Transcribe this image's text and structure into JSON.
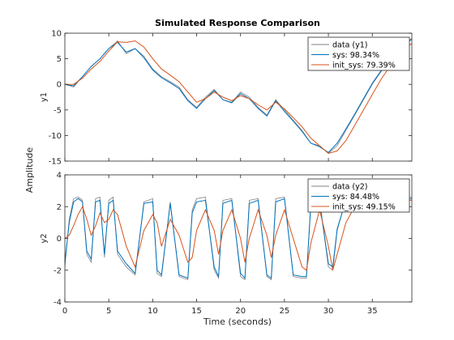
{
  "chart_data": {
    "type": "line",
    "title": "Simulated Response Comparison",
    "xlabel": "Time (seconds)",
    "ylabel": "Amplitude",
    "xlim": [
      0,
      39.5
    ],
    "xticks": [
      "0",
      "5",
      "10",
      "15",
      "20",
      "25",
      "30",
      "35"
    ],
    "colors": {
      "data": "#808080",
      "sys": "#0072bd",
      "init_sys": "#d95319"
    },
    "subplots": [
      {
        "ylabel": "y1",
        "ylim": [
          -15,
          10
        ],
        "yticks": [
          "10",
          "5",
          "0",
          "-5",
          "-10",
          "-15"
        ],
        "legend": [
          "data (y1)",
          "sys: 98.34%",
          "init_sys: 79.39%"
        ],
        "series": [
          {
            "name": "data (y1)",
            "x": [
              0,
              1,
              2,
              3,
              4,
              5,
              6,
              7,
              8,
              9,
              10,
              11,
              12,
              13,
              14,
              15,
              16,
              17,
              18,
              19,
              20,
              21,
              22,
              23,
              24,
              25,
              26,
              27,
              28,
              29,
              30,
              31,
              32,
              33,
              34,
              35,
              36,
              37,
              38,
              39.5
            ],
            "values": [
              0,
              -0.5,
              1.5,
              3.5,
              5,
              7,
              8.5,
              6,
              7,
              5.5,
              3,
              1.5,
              0.5,
              -0.5,
              -3,
              -4.5,
              -2.5,
              -1,
              -3,
              -3.5,
              -1.5,
              -2.5,
              -4.5,
              -6,
              -3,
              -5,
              -7,
              -9,
              -11.5,
              -12,
              -13.5,
              -12,
              -9,
              -6,
              -3,
              0,
              2.5,
              5,
              7,
              9
            ]
          },
          {
            "name": "sys: 98.34%",
            "x": [
              0,
              1,
              2,
              3,
              4,
              5,
              6,
              7,
              8,
              9,
              10,
              11,
              12,
              13,
              14,
              15,
              16,
              17,
              18,
              19,
              20,
              21,
              22,
              23,
              24,
              25,
              26,
              27,
              28,
              29,
              30,
              31,
              32,
              33,
              34,
              35,
              36,
              37,
              38,
              39.5
            ],
            "values": [
              0,
              -0.3,
              1.5,
              3.5,
              5,
              7,
              8.2,
              6.3,
              7,
              5.2,
              2.8,
              1.3,
              0.3,
              -0.8,
              -3.2,
              -4.7,
              -2.8,
              -1.2,
              -3,
              -3.6,
              -1.8,
              -2.8,
              -4.7,
              -6.2,
              -3.2,
              -5.3,
              -7.2,
              -9.2,
              -11.5,
              -12.2,
              -13.3,
              -11.5,
              -8.7,
              -5.8,
              -2.8,
              0.2,
              2.7,
              5.2,
              7.2,
              8.8
            ]
          },
          {
            "name": "init_sys: 79.39%",
            "x": [
              0,
              1,
              2,
              3,
              4,
              5,
              6,
              7,
              8,
              9,
              10,
              11,
              12,
              13,
              14,
              15,
              16,
              17,
              18,
              19,
              20,
              21,
              22,
              23,
              24,
              25,
              26,
              27,
              28,
              29,
              30,
              31,
              32,
              33,
              34,
              35,
              36,
              37,
              38,
              39.5
            ],
            "values": [
              0,
              0,
              1.2,
              3,
              4.5,
              6.5,
              8.3,
              8.2,
              8.5,
              7.3,
              5,
              3,
              1.8,
              0.5,
              -1.5,
              -3.5,
              -2.8,
              -1.5,
              -2.5,
              -3.2,
              -2.2,
              -2.8,
              -4,
              -5,
              -3.5,
              -4.8,
              -6.5,
              -8.3,
              -10.5,
              -12,
              -13.5,
              -13,
              -11,
              -8,
              -5,
              -2,
              1,
              3.5,
              6,
              8
            ]
          }
        ]
      },
      {
        "ylabel": "y2",
        "ylim": [
          -4,
          4
        ],
        "yticks": [
          "4",
          "2",
          "0",
          "-2",
          "-4"
        ],
        "legend": [
          "data (y2)",
          "sys: 84.48%",
          "init_sys: 49.15%"
        ],
        "series": [
          {
            "name": "data (y2)",
            "x": [
              0,
              0.5,
              1,
              1.5,
              2,
              2.5,
              3,
              3.5,
              4,
              4.5,
              5,
              5.5,
              6,
              7,
              8,
              9,
              10,
              10.5,
              11,
              12,
              13,
              14,
              14.5,
              15,
              16,
              17,
              17.5,
              18,
              19,
              20,
              20.5,
              21,
              22,
              23,
              23.5,
              24,
              25,
              26,
              27,
              27.5,
              28,
              29,
              30,
              30.5,
              31,
              32,
              33,
              34,
              35,
              36,
              37,
              38,
              39.5
            ],
            "values": [
              -1.8,
              1.2,
              2.5,
              2.6,
              2.4,
              -1,
              -1.5,
              2.5,
              2.6,
              -1.2,
              2.4,
              2.6,
              -1,
              -1.8,
              -2.3,
              2.3,
              2.5,
              -2.2,
              -2.4,
              2.3,
              -2.4,
              -2.6,
              1.8,
              2.5,
              2.6,
              -2,
              -2.5,
              2.4,
              2.5,
              -2.4,
              -2.6,
              2.4,
              2.5,
              -2.4,
              -2.6,
              2.5,
              2.6,
              -2.4,
              -2.5,
              -2.5,
              2.3,
              2.4,
              -1.8,
              -2,
              0.5,
              2.5,
              2.6,
              2.6,
              2.6,
              2.6,
              2.5,
              2.6,
              2.6
            ]
          },
          {
            "name": "sys: 84.48%",
            "x": [
              0,
              0.5,
              1,
              1.5,
              2,
              2.5,
              3,
              3.5,
              4,
              4.5,
              5,
              5.5,
              6,
              7,
              8,
              9,
              10,
              10.5,
              11,
              12,
              13,
              14,
              14.5,
              15,
              16,
              17,
              17.5,
              18,
              19,
              20,
              20.5,
              21,
              22,
              23,
              23.5,
              24,
              25,
              26,
              27,
              27.5,
              28,
              29,
              30,
              30.5,
              31,
              32,
              33,
              34,
              35,
              36,
              37,
              38,
              39.5
            ],
            "values": [
              -1.5,
              1,
              2.3,
              2.5,
              2.3,
              -0.8,
              -1.3,
              2.3,
              2.4,
              -1,
              2.2,
              2.4,
              -0.8,
              -1.6,
              -2.2,
              2.2,
              2.3,
              -2,
              -2.3,
              2.2,
              -2.3,
              -2.5,
              1.6,
              2.3,
              2.4,
              -1.8,
              -2.4,
              2.2,
              2.4,
              -2.2,
              -2.5,
              2.2,
              2.4,
              -2.3,
              -2.5,
              2.3,
              2.5,
              -2.3,
              -2.4,
              -2.4,
              2.1,
              2.3,
              -1.6,
              -1.8,
              0.6,
              2.4,
              2.5,
              2.5,
              2.5,
              2.5,
              2.4,
              2.5,
              2.5
            ]
          },
          {
            "name": "init_sys: 49.15%",
            "x": [
              0,
              0.5,
              1,
              1.5,
              2,
              2.5,
              3,
              3.5,
              4,
              4.5,
              5,
              5.5,
              6,
              7,
              8,
              9,
              10,
              10.5,
              11,
              12,
              13,
              14,
              14.5,
              15,
              16,
              17,
              17.5,
              18,
              19,
              20,
              20.5,
              21,
              22,
              23,
              23.5,
              24,
              25,
              26,
              27,
              27.5,
              28,
              29,
              30,
              30.5,
              31,
              32,
              33,
              34,
              35,
              36,
              37,
              38,
              39.5
            ],
            "values": [
              0,
              0.2,
              0.8,
              1.5,
              2,
              1.2,
              0.2,
              0.8,
              1.6,
              1,
              1.2,
              1.8,
              1.5,
              -0.5,
              -1.8,
              0.5,
              1.5,
              1,
              -0.5,
              1.2,
              0.2,
              -1.5,
              -1.2,
              0.5,
              1.8,
              0.5,
              -1,
              0.5,
              1.8,
              0,
              -1.5,
              0,
              1.8,
              0.2,
              -1.2,
              0.2,
              1.8,
              0,
              -1.8,
              -2,
              -0.3,
              1.8,
              -0.5,
              -2,
              -1,
              1,
              2,
              2.3,
              2.4,
              2.4,
              2.4,
              2.4,
              2.4
            ]
          }
        ]
      }
    ]
  }
}
